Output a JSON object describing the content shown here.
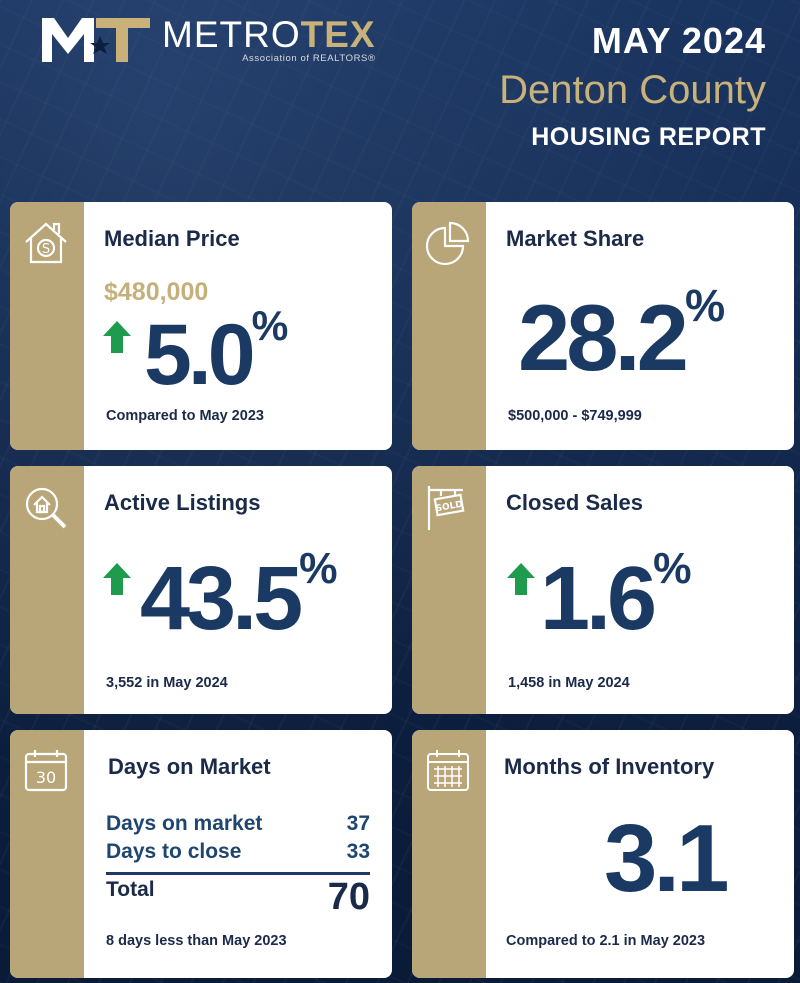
{
  "header": {
    "logo_name_a": "METRO",
    "logo_name_b": "TEX",
    "logo_sub": "Association of REALTORS®",
    "month": "MAY 2024",
    "county": "Denton County",
    "report": "HOUSING REPORT"
  },
  "colors": {
    "navy": "#0d1f3d",
    "gold": "#b8a578",
    "gold_text": "#c5b07c",
    "blue_text": "#1b3a63",
    "up_arrow": "#1e9b4c"
  },
  "median_price": {
    "icon": "house-dollar-icon",
    "title": "Median Price",
    "price": "$480,000",
    "change": "5.0",
    "unit": "%",
    "direction": "up",
    "note": "Compared to May 2023"
  },
  "market_share": {
    "icon": "pie-chart-icon",
    "title": "Market Share",
    "value": "28.2",
    "unit": "%",
    "note": "$500,000 - $749,999"
  },
  "active_listings": {
    "icon": "house-search-icon",
    "title": "Active Listings",
    "change": "43.5",
    "unit": "%",
    "direction": "up",
    "note": "3,552 in May 2024"
  },
  "closed_sales": {
    "icon": "sold-sign-icon",
    "title": "Closed Sales",
    "sign_text": "SOLD",
    "change": "1.6",
    "unit": "%",
    "direction": "up",
    "note": "1,458 in May 2024"
  },
  "days_on_market": {
    "icon": "calendar-icon",
    "calendar_day": "30",
    "title": "Days on Market",
    "rows": [
      {
        "label": "Days on market",
        "value": "37"
      },
      {
        "label": "Days to close",
        "value": "33"
      }
    ],
    "total_label": "Total",
    "total_value": "70",
    "note": "8 days less than May 2023"
  },
  "months_inventory": {
    "icon": "calendar-grid-icon",
    "title": "Months of Inventory",
    "value": "3.1",
    "note": "Compared to 2.1 in May 2023"
  }
}
